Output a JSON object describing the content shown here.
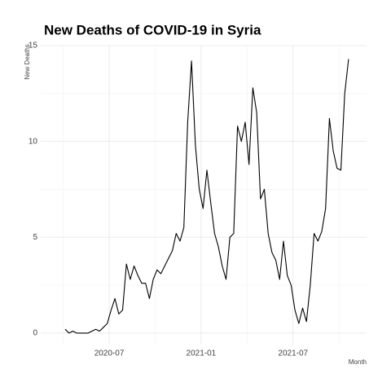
{
  "chart_data": {
    "type": "line",
    "title": "New Deaths of COVID-19 in Syria",
    "y_label": "New Deaths",
    "x_label": "Month",
    "x": [
      "2020-04",
      "2020-04",
      "2020-04",
      "2020-04",
      "2020-05",
      "2020-05",
      "2020-05",
      "2020-05",
      "2020-06",
      "2020-06",
      "2020-06",
      "2020-06",
      "2020-07",
      "2020-07",
      "2020-07",
      "2020-07",
      "2020-08",
      "2020-08",
      "2020-08",
      "2020-08",
      "2020-09",
      "2020-09",
      "2020-09",
      "2020-09",
      "2020-10",
      "2020-10",
      "2020-10",
      "2020-10",
      "2020-11",
      "2020-11",
      "2020-11",
      "2020-11",
      "2020-12",
      "2020-12",
      "2020-12",
      "2020-12",
      "2021-01",
      "2021-01",
      "2021-01",
      "2021-01",
      "2021-02",
      "2021-02",
      "2021-02",
      "2021-02",
      "2021-03",
      "2021-03",
      "2021-03",
      "2021-03",
      "2021-04",
      "2021-04",
      "2021-04",
      "2021-04",
      "2021-05",
      "2021-05",
      "2021-05",
      "2021-05",
      "2021-06",
      "2021-06",
      "2021-06",
      "2021-06",
      "2021-07",
      "2021-07",
      "2021-07",
      "2021-07",
      "2021-08",
      "2021-08",
      "2021-08",
      "2021-08",
      "2021-09",
      "2021-09",
      "2021-09",
      "2021-09",
      "2021-10",
      "2021-10",
      "2021-10",
      "2021-10"
    ],
    "series": [
      {
        "name": "New Deaths",
        "color": "#000000",
        "values": [
          0.2,
          0,
          0.1,
          0,
          0,
          0,
          0,
          0.1,
          0.2,
          0.1,
          0.3,
          0.5,
          1.2,
          1.8,
          1.0,
          1.2,
          3.6,
          2.8,
          3.5,
          3.0,
          2.6,
          2.6,
          1.8,
          2.8,
          3.3,
          3.1,
          3.5,
          3.9,
          4.3,
          5.2,
          4.8,
          5.5,
          11,
          14.2,
          9.8,
          7.5,
          6.5,
          8.5,
          6.8,
          5.2,
          4.5,
          3.5,
          2.8,
          5.0,
          5.2,
          10.8,
          10,
          11,
          8.8,
          12.8,
          11.5,
          7.0,
          7.5,
          5.2,
          4.2,
          3.8,
          2.8,
          4.8,
          3.0,
          2.5,
          1.2,
          0.5,
          1.3,
          0.6,
          2.5,
          5.2,
          4.8,
          5.3,
          6.5,
          11.2,
          9.5,
          8.6,
          8.5,
          12.5,
          14.3,
          null
        ]
      }
    ],
    "xlim": [
      "2020-02",
      "2021-11"
    ],
    "xticks": [
      "2020-07",
      "2021-01",
      "2021-07"
    ],
    "ylim": [
      -0.6,
      15
    ],
    "yticks": [
      0,
      5,
      10,
      15
    ],
    "grid": true
  }
}
